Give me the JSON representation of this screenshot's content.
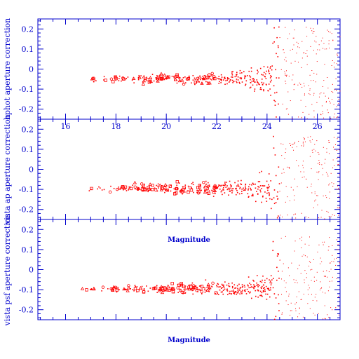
{
  "chart_data": [
    {
      "type": "scatter",
      "ylabel": "hphot aperture correction",
      "xlim": [
        14.9,
        26.9
      ],
      "ylim": [
        -0.25,
        0.25
      ],
      "x_ticks": [
        "16",
        "18",
        "20",
        "22",
        "24",
        "26"
      ],
      "y_ticks": [
        "0.2",
        "0.1",
        "0",
        "-0.1",
        "-0.2"
      ],
      "points_summary": "scatter of aperture correction vs magnitude, roughly -0.05 to -0.1 for mag 17-23 then widening to +/-0.25 beyond mag 24",
      "marker_color": "#ff0000"
    },
    {
      "type": "scatter",
      "ylabel": "vista ap aperture correction",
      "xlabel": "Magnitude",
      "xlim": [
        14.9,
        26.9
      ],
      "ylim": [
        -0.25,
        0.25
      ],
      "y_ticks": [
        "0.2",
        "0.1",
        "0",
        "-0.1",
        "-0.2"
      ],
      "marker_color": "#ff0000"
    },
    {
      "type": "scatter",
      "ylabel": "vista psf aperture correction",
      "xlabel": "Magnitude",
      "xlim": [
        14.9,
        26.9
      ],
      "ylim": [
        -0.25,
        0.25
      ],
      "y_ticks": [
        "0.2",
        "0.1",
        "0",
        "-0.1",
        "-0.2"
      ],
      "marker_color": "#ff0000"
    }
  ]
}
